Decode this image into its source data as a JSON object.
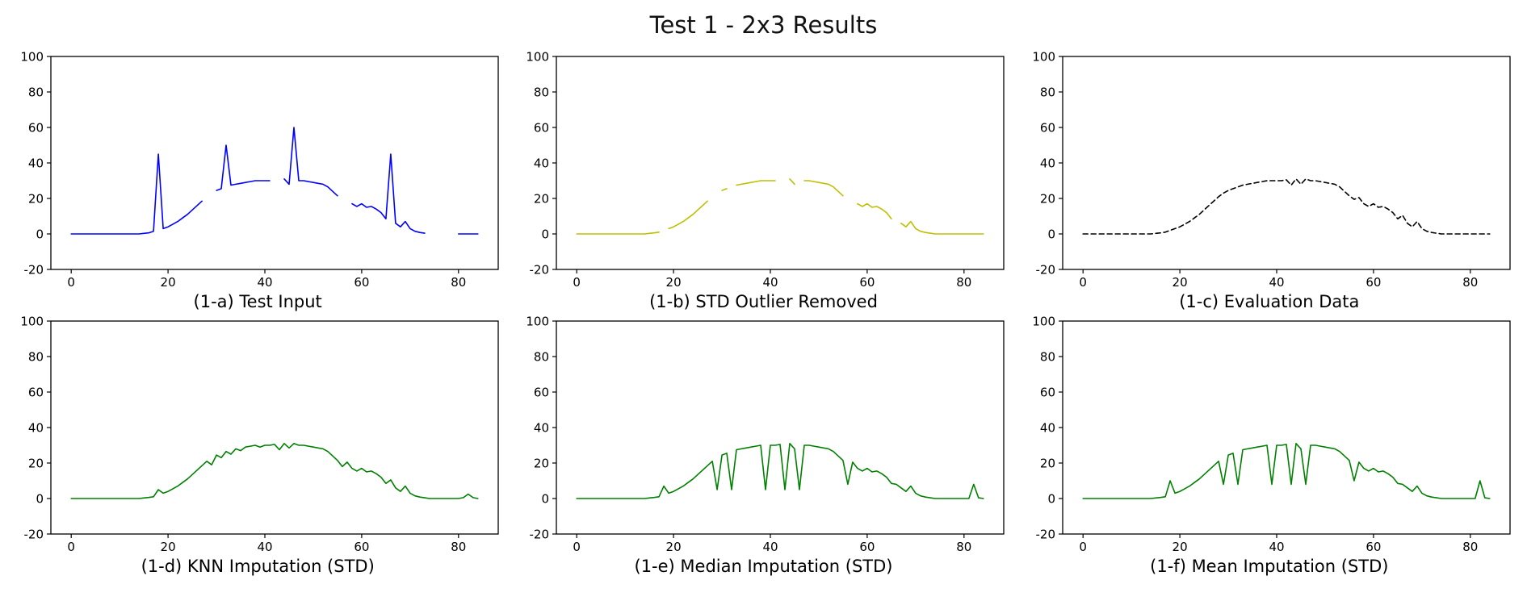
{
  "title": "Test 1 - 2x3 Results",
  "chart_data": [
    {
      "type": "line",
      "caption": "(1-a) Test Input",
      "color": "#0000ff",
      "dash": false,
      "x_start": 0,
      "x_step": 1,
      "xlim": [
        -4.2,
        88.2
      ],
      "ylim": [
        -20,
        100
      ],
      "xticks": [
        0,
        20,
        40,
        60,
        80
      ],
      "yticks": [
        -20,
        0,
        20,
        40,
        60,
        80,
        100
      ],
      "grid": false,
      "legend": "none",
      "values": [
        0,
        0,
        0,
        0,
        0,
        0,
        0,
        0,
        0,
        0,
        0,
        0,
        0,
        0,
        0,
        0.3,
        0.6,
        1.5,
        45,
        3,
        4,
        5.5,
        7,
        9,
        11,
        13.5,
        16,
        18.5,
        null,
        null,
        24.5,
        25.5,
        50,
        27.5,
        28,
        28.5,
        29,
        29.5,
        30,
        30,
        30,
        30,
        null,
        null,
        31,
        28,
        60,
        30,
        30,
        29.5,
        29,
        28.5,
        28,
        26.5,
        24,
        21.5,
        null,
        null,
        17,
        15.5,
        17,
        15,
        15.5,
        14,
        12,
        8.5,
        45,
        6,
        4,
        7,
        3,
        1.5,
        0.8,
        0.4,
        null,
        null,
        null,
        null,
        null,
        null,
        0,
        0,
        0,
        0,
        0
      ]
    },
    {
      "type": "line",
      "caption": "(1-b) STD Outlier Removed",
      "color": "#bfbf00",
      "dash": false,
      "x_start": 0,
      "x_step": 1,
      "xlim": [
        -4.2,
        88.2
      ],
      "ylim": [
        -20,
        100
      ],
      "xticks": [
        0,
        20,
        40,
        60,
        80
      ],
      "yticks": [
        -20,
        0,
        20,
        40,
        60,
        80,
        100
      ],
      "grid": false,
      "legend": "none",
      "values": [
        0,
        0,
        0,
        0,
        0,
        0,
        0,
        0,
        0,
        0,
        0,
        0,
        0,
        0,
        0,
        0.3,
        0.6,
        1,
        null,
        3,
        4,
        5.5,
        7,
        9,
        11,
        13.5,
        16,
        18.5,
        null,
        null,
        24.5,
        25.5,
        null,
        27.5,
        28,
        28.5,
        29,
        29.5,
        30,
        30,
        30,
        30,
        null,
        null,
        31,
        28,
        null,
        30,
        30,
        29.5,
        29,
        28.5,
        28,
        26.5,
        24,
        21.5,
        null,
        null,
        17,
        15.5,
        17,
        15,
        15.5,
        14,
        12,
        8.5,
        null,
        6,
        4,
        7,
        3,
        1.5,
        0.8,
        0.4,
        0,
        0,
        0,
        0,
        0,
        0,
        0,
        0,
        0,
        0,
        0
      ]
    },
    {
      "type": "line",
      "caption": "(1-c) Evaluation Data",
      "color": "#000000",
      "dash": true,
      "x_start": 0,
      "x_step": 1,
      "xlim": [
        -4.2,
        88.2
      ],
      "ylim": [
        -20,
        100
      ],
      "xticks": [
        0,
        20,
        40,
        60,
        80
      ],
      "yticks": [
        -20,
        0,
        20,
        40,
        60,
        80,
        100
      ],
      "grid": false,
      "legend": "none",
      "values": [
        0,
        0,
        0,
        0,
        0,
        0,
        0,
        0,
        0,
        0,
        0,
        0,
        0,
        0,
        0,
        0.3,
        0.6,
        1,
        2,
        3,
        4,
        5.5,
        7,
        9,
        11,
        13.5,
        16,
        18.5,
        21,
        23,
        24.5,
        25.5,
        26.5,
        27.5,
        28,
        28.5,
        29,
        29.5,
        30,
        30,
        30,
        30,
        30.5,
        27.5,
        31,
        28,
        31,
        30,
        30,
        29.5,
        29,
        28.5,
        28,
        26.5,
        24,
        21.5,
        19.5,
        20.5,
        17,
        15.5,
        17,
        15,
        15.5,
        14,
        12,
        8.5,
        10.5,
        6,
        4,
        7,
        3,
        1.5,
        0.8,
        0.4,
        0,
        0,
        0,
        0,
        0,
        0,
        0,
        0,
        0,
        0,
        0
      ]
    },
    {
      "type": "line",
      "caption": "(1-d) KNN Imputation (STD)",
      "color": "#008000",
      "dash": false,
      "x_start": 0,
      "x_step": 1,
      "xlim": [
        -4.2,
        88.2
      ],
      "ylim": [
        -20,
        100
      ],
      "xticks": [
        0,
        20,
        40,
        60,
        80
      ],
      "yticks": [
        -20,
        0,
        20,
        40,
        60,
        80,
        100
      ],
      "grid": false,
      "legend": "none",
      "values": [
        0,
        0,
        0,
        0,
        0,
        0,
        0,
        0,
        0,
        0,
        0,
        0,
        0,
        0,
        0,
        0.3,
        0.6,
        1,
        5,
        3,
        4,
        5.5,
        7,
        9,
        11,
        13.5,
        16,
        18.5,
        21,
        19,
        24.5,
        23,
        26.5,
        25,
        28,
        27,
        29,
        29.5,
        30,
        29,
        30,
        30,
        30.5,
        27.5,
        31,
        28.5,
        31,
        30,
        30,
        29.5,
        29,
        28.5,
        28,
        26.5,
        24,
        21.5,
        18,
        20.5,
        17,
        15.5,
        17,
        15,
        15.5,
        14,
        12,
        8.5,
        10.5,
        6,
        4,
        7,
        3,
        1.5,
        0.8,
        0.4,
        0,
        0,
        0,
        0,
        0,
        0,
        0,
        0.5,
        2.5,
        0.5,
        0
      ]
    },
    {
      "type": "line",
      "caption": "(1-e) Median Imputation (STD)",
      "color": "#008000",
      "dash": false,
      "x_start": 0,
      "x_step": 1,
      "xlim": [
        -4.2,
        88.2
      ],
      "ylim": [
        -20,
        100
      ],
      "xticks": [
        0,
        20,
        40,
        60,
        80
      ],
      "yticks": [
        -20,
        0,
        20,
        40,
        60,
        80,
        100
      ],
      "grid": false,
      "legend": "none",
      "values": [
        0,
        0,
        0,
        0,
        0,
        0,
        0,
        0,
        0,
        0,
        0,
        0,
        0,
        0,
        0,
        0.3,
        0.6,
        1,
        7,
        3,
        4,
        5.5,
        7,
        9,
        11,
        13.5,
        16,
        18.5,
        21,
        5,
        24.5,
        25.5,
        5,
        27.5,
        28,
        28.5,
        29,
        29.5,
        30,
        5,
        30,
        30,
        30.5,
        5,
        31,
        28,
        5,
        30,
        30,
        29.5,
        29,
        28.5,
        28,
        26.5,
        24,
        21.5,
        8,
        20.5,
        17,
        15.5,
        17,
        15,
        15.5,
        14,
        12,
        8.5,
        8,
        6,
        4,
        7,
        3,
        1.5,
        0.8,
        0.4,
        0,
        0,
        0,
        0,
        0,
        0,
        0,
        0,
        8,
        0.4,
        0
      ]
    },
    {
      "type": "line",
      "caption": "(1-f) Mean Imputation (STD)",
      "color": "#008000",
      "dash": false,
      "x_start": 0,
      "x_step": 1,
      "xlim": [
        -4.2,
        88.2
      ],
      "ylim": [
        -20,
        100
      ],
      "xticks": [
        0,
        20,
        40,
        60,
        80
      ],
      "yticks": [
        -20,
        0,
        20,
        40,
        60,
        80,
        100
      ],
      "grid": false,
      "legend": "none",
      "values": [
        0,
        0,
        0,
        0,
        0,
        0,
        0,
        0,
        0,
        0,
        0,
        0,
        0,
        0,
        0,
        0.3,
        0.6,
        1,
        10,
        3,
        4,
        5.5,
        7,
        9,
        11,
        13.5,
        16,
        18.5,
        21,
        8,
        24.5,
        25.5,
        8,
        27.5,
        28,
        28.5,
        29,
        29.5,
        30,
        8,
        30,
        30,
        30.5,
        8,
        31,
        28,
        8,
        30,
        30,
        29.5,
        29,
        28.5,
        28,
        26.5,
        24,
        21.5,
        10,
        20.5,
        17,
        15.5,
        17,
        15,
        15.5,
        14,
        12,
        8.5,
        8,
        6,
        4,
        7,
        3,
        1.5,
        0.8,
        0.4,
        0,
        0,
        0,
        0,
        0,
        0,
        0,
        0,
        10,
        0.4,
        0
      ]
    }
  ]
}
